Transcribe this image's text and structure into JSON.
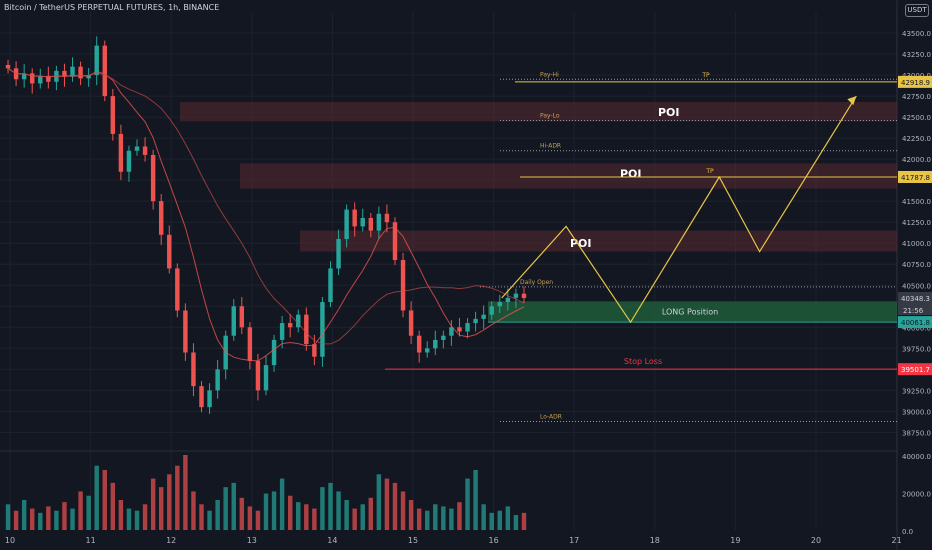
{
  "header": {
    "symbol_line": "Bitcoin / TetherUS PERPETUAL FUTURES, 1h, BINANCE",
    "currency_badge": "USDT"
  },
  "colors": {
    "background": "#131722",
    "grid": "#1e222d",
    "up_candle": "#26a69a",
    "down_candle": "#ef5350",
    "projection": "#e8c547",
    "long_zone": "#1e5c3a",
    "stop_line": "#f23645",
    "poi_zone": "#5a2a32"
  },
  "chart_data": {
    "type": "candlestick",
    "x_ticks": [
      "10",
      "11",
      "12",
      "13",
      "14",
      "15",
      "16",
      "17",
      "18",
      "19",
      "20",
      "21"
    ],
    "y_ticks": [
      "43500.0",
      "43250.0",
      "43000.0",
      "42750.0",
      "42500.0",
      "42250.0",
      "42000.0",
      "41750.0",
      "41500.0",
      "41250.0",
      "41000.0",
      "40750.0",
      "40500.0",
      "40250.0",
      "40000.0",
      "39750.0",
      "39500.0",
      "39250.0",
      "39000.0",
      "38750.0"
    ],
    "volume_ticks": [
      "40000.0",
      "20000.0",
      "0.0"
    ],
    "ylim": [
      38600,
      43750
    ],
    "price_tags": [
      {
        "value": 42918.9,
        "label": "42918.9",
        "color": "#e8c547",
        "text_color": "#131722"
      },
      {
        "value": 41787.8,
        "label": "41787.8",
        "color": "#e8c547",
        "text_color": "#131722"
      },
      {
        "value": 40348.3,
        "label": "40348.3",
        "color": "#363a45",
        "text_color": "#d1d4dc"
      },
      {
        "value": 40061.8,
        "label": "40061.8",
        "color": "#26a69a",
        "text_color": "#131722"
      },
      {
        "value": 39501.7,
        "label": "39501.7",
        "color": "#f23645",
        "text_color": "#ffffff"
      }
    ],
    "countdown": "21:56",
    "path_close": [
      43080,
      42950,
      43020,
      42900,
      42990,
      42920,
      43050,
      42980,
      43100,
      42960,
      43000,
      43350,
      42750,
      42300,
      41850,
      42100,
      42150,
      42050,
      41500,
      41100,
      40700,
      40200,
      39700,
      39300,
      39050,
      39250,
      39500,
      39900,
      40250,
      40000,
      39600,
      39250,
      39550,
      39850,
      40050,
      40000,
      40150,
      39800,
      39650,
      40300,
      40700,
      41050,
      41400,
      41200,
      41300,
      41150,
      41350,
      41250,
      40800,
      40200,
      39900,
      39700,
      39750,
      39850,
      39900,
      40000,
      39950,
      40050,
      40100,
      40150,
      40250,
      40300,
      40350,
      40400,
      40348
    ],
    "volume": [
      12,
      9,
      14,
      10,
      8,
      11,
      9,
      13,
      10,
      18,
      16,
      30,
      28,
      22,
      14,
      10,
      9,
      12,
      24,
      20,
      26,
      30,
      35,
      18,
      12,
      9,
      14,
      20,
      22,
      15,
      11,
      9,
      17,
      18,
      24,
      16,
      13,
      12,
      10,
      20,
      22,
      18,
      14,
      10,
      12,
      15,
      26,
      24,
      22,
      18,
      14,
      10,
      9,
      12,
      11,
      10,
      13,
      24,
      28,
      12,
      8,
      9,
      11,
      7,
      8
    ],
    "zones": [
      {
        "label": "POI",
        "from": 42450,
        "to": 42680
      },
      {
        "label": "POI",
        "from": 41650,
        "to": 41950
      },
      {
        "label": "POI",
        "from": 40900,
        "to": 41150
      }
    ],
    "levels": [
      {
        "label": "Pay-Hi",
        "value": 42950
      },
      {
        "label": "Pay-Lo",
        "value": 42460
      },
      {
        "label": "Hi-ADR",
        "value": 42100
      },
      {
        "label": "Daily Open",
        "value": 40480
      },
      {
        "label": "Lo-ADR",
        "value": 38880
      }
    ],
    "long_position_label": "LONG Position",
    "stop_loss_label": "Stop Loss",
    "tp_label": "TP",
    "poi_label": "POI",
    "projection_path": [
      {
        "x": "16.1",
        "y": 40348
      },
      {
        "x": "16.9",
        "y": 41200
      },
      {
        "x": "17.7",
        "y": 40060
      },
      {
        "x": "18.8",
        "y": 41787
      },
      {
        "x": "19.3",
        "y": 40900
      },
      {
        "x": "20.5",
        "y": 42750
      }
    ]
  }
}
